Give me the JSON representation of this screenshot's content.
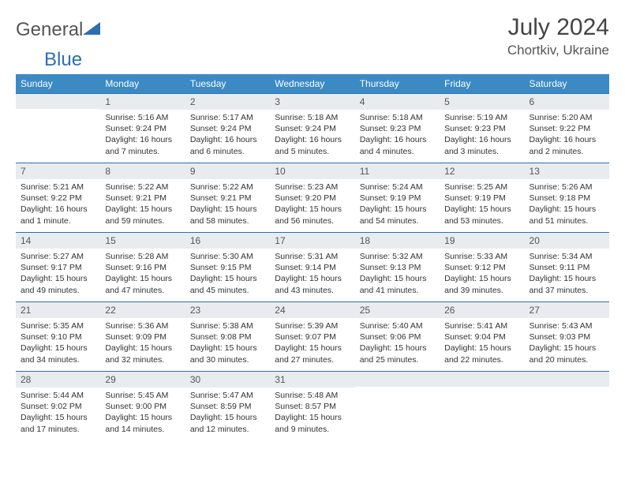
{
  "brand": {
    "part1": "General",
    "part2": "Blue"
  },
  "title": "July 2024",
  "location": "Chortkiv, Ukraine",
  "colors": {
    "header_bg": "#3b8ac4",
    "header_fg": "#ffffff",
    "daynum_bg": "#e8ecef",
    "border": "#2d6fb0",
    "text": "#333333"
  },
  "dayHeaders": [
    "Sunday",
    "Monday",
    "Tuesday",
    "Wednesday",
    "Thursday",
    "Friday",
    "Saturday"
  ],
  "weeks": [
    [
      {
        "num": "",
        "lines": []
      },
      {
        "num": "1",
        "lines": [
          "Sunrise: 5:16 AM",
          "Sunset: 9:24 PM",
          "Daylight: 16 hours and 7 minutes."
        ]
      },
      {
        "num": "2",
        "lines": [
          "Sunrise: 5:17 AM",
          "Sunset: 9:24 PM",
          "Daylight: 16 hours and 6 minutes."
        ]
      },
      {
        "num": "3",
        "lines": [
          "Sunrise: 5:18 AM",
          "Sunset: 9:24 PM",
          "Daylight: 16 hours and 5 minutes."
        ]
      },
      {
        "num": "4",
        "lines": [
          "Sunrise: 5:18 AM",
          "Sunset: 9:23 PM",
          "Daylight: 16 hours and 4 minutes."
        ]
      },
      {
        "num": "5",
        "lines": [
          "Sunrise: 5:19 AM",
          "Sunset: 9:23 PM",
          "Daylight: 16 hours and 3 minutes."
        ]
      },
      {
        "num": "6",
        "lines": [
          "Sunrise: 5:20 AM",
          "Sunset: 9:22 PM",
          "Daylight: 16 hours and 2 minutes."
        ]
      }
    ],
    [
      {
        "num": "7",
        "lines": [
          "Sunrise: 5:21 AM",
          "Sunset: 9:22 PM",
          "Daylight: 16 hours and 1 minute."
        ]
      },
      {
        "num": "8",
        "lines": [
          "Sunrise: 5:22 AM",
          "Sunset: 9:21 PM",
          "Daylight: 15 hours and 59 minutes."
        ]
      },
      {
        "num": "9",
        "lines": [
          "Sunrise: 5:22 AM",
          "Sunset: 9:21 PM",
          "Daylight: 15 hours and 58 minutes."
        ]
      },
      {
        "num": "10",
        "lines": [
          "Sunrise: 5:23 AM",
          "Sunset: 9:20 PM",
          "Daylight: 15 hours and 56 minutes."
        ]
      },
      {
        "num": "11",
        "lines": [
          "Sunrise: 5:24 AM",
          "Sunset: 9:19 PM",
          "Daylight: 15 hours and 54 minutes."
        ]
      },
      {
        "num": "12",
        "lines": [
          "Sunrise: 5:25 AM",
          "Sunset: 9:19 PM",
          "Daylight: 15 hours and 53 minutes."
        ]
      },
      {
        "num": "13",
        "lines": [
          "Sunrise: 5:26 AM",
          "Sunset: 9:18 PM",
          "Daylight: 15 hours and 51 minutes."
        ]
      }
    ],
    [
      {
        "num": "14",
        "lines": [
          "Sunrise: 5:27 AM",
          "Sunset: 9:17 PM",
          "Daylight: 15 hours and 49 minutes."
        ]
      },
      {
        "num": "15",
        "lines": [
          "Sunrise: 5:28 AM",
          "Sunset: 9:16 PM",
          "Daylight: 15 hours and 47 minutes."
        ]
      },
      {
        "num": "16",
        "lines": [
          "Sunrise: 5:30 AM",
          "Sunset: 9:15 PM",
          "Daylight: 15 hours and 45 minutes."
        ]
      },
      {
        "num": "17",
        "lines": [
          "Sunrise: 5:31 AM",
          "Sunset: 9:14 PM",
          "Daylight: 15 hours and 43 minutes."
        ]
      },
      {
        "num": "18",
        "lines": [
          "Sunrise: 5:32 AM",
          "Sunset: 9:13 PM",
          "Daylight: 15 hours and 41 minutes."
        ]
      },
      {
        "num": "19",
        "lines": [
          "Sunrise: 5:33 AM",
          "Sunset: 9:12 PM",
          "Daylight: 15 hours and 39 minutes."
        ]
      },
      {
        "num": "20",
        "lines": [
          "Sunrise: 5:34 AM",
          "Sunset: 9:11 PM",
          "Daylight: 15 hours and 37 minutes."
        ]
      }
    ],
    [
      {
        "num": "21",
        "lines": [
          "Sunrise: 5:35 AM",
          "Sunset: 9:10 PM",
          "Daylight: 15 hours and 34 minutes."
        ]
      },
      {
        "num": "22",
        "lines": [
          "Sunrise: 5:36 AM",
          "Sunset: 9:09 PM",
          "Daylight: 15 hours and 32 minutes."
        ]
      },
      {
        "num": "23",
        "lines": [
          "Sunrise: 5:38 AM",
          "Sunset: 9:08 PM",
          "Daylight: 15 hours and 30 minutes."
        ]
      },
      {
        "num": "24",
        "lines": [
          "Sunrise: 5:39 AM",
          "Sunset: 9:07 PM",
          "Daylight: 15 hours and 27 minutes."
        ]
      },
      {
        "num": "25",
        "lines": [
          "Sunrise: 5:40 AM",
          "Sunset: 9:06 PM",
          "Daylight: 15 hours and 25 minutes."
        ]
      },
      {
        "num": "26",
        "lines": [
          "Sunrise: 5:41 AM",
          "Sunset: 9:04 PM",
          "Daylight: 15 hours and 22 minutes."
        ]
      },
      {
        "num": "27",
        "lines": [
          "Sunrise: 5:43 AM",
          "Sunset: 9:03 PM",
          "Daylight: 15 hours and 20 minutes."
        ]
      }
    ],
    [
      {
        "num": "28",
        "lines": [
          "Sunrise: 5:44 AM",
          "Sunset: 9:02 PM",
          "Daylight: 15 hours and 17 minutes."
        ]
      },
      {
        "num": "29",
        "lines": [
          "Sunrise: 5:45 AM",
          "Sunset: 9:00 PM",
          "Daylight: 15 hours and 14 minutes."
        ]
      },
      {
        "num": "30",
        "lines": [
          "Sunrise: 5:47 AM",
          "Sunset: 8:59 PM",
          "Daylight: 15 hours and 12 minutes."
        ]
      },
      {
        "num": "31",
        "lines": [
          "Sunrise: 5:48 AM",
          "Sunset: 8:57 PM",
          "Daylight: 15 hours and 9 minutes."
        ]
      },
      {
        "num": "",
        "lines": []
      },
      {
        "num": "",
        "lines": []
      },
      {
        "num": "",
        "lines": []
      }
    ]
  ]
}
